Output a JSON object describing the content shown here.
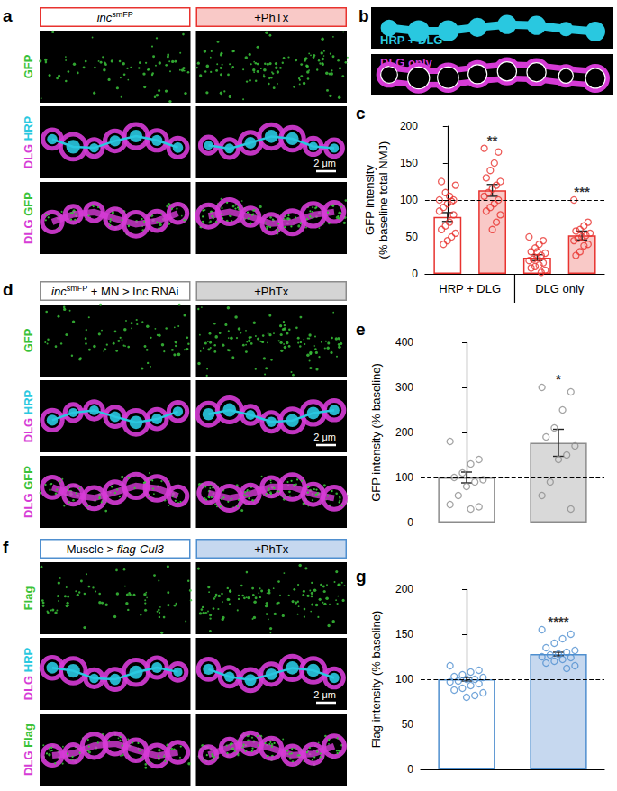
{
  "panels": [
    {
      "letter": "a",
      "headers": [
        [
          {
            "text": "inc",
            "italic": true
          },
          {
            "text": "smFP",
            "sup": true
          }
        ],
        [
          {
            "text": "+PhTx"
          }
        ]
      ],
      "theme": {
        "color": "#e8332f",
        "fill": "#f9c9c7"
      },
      "rows": [
        [
          {
            "text": "GFP",
            "color": "#39c23a"
          }
        ],
        [
          {
            "text": "DLG",
            "color": "#d63bd6"
          },
          {
            "text": " HRP",
            "color": "#29c8e0"
          }
        ],
        [
          {
            "text": "DLG",
            "color": "#d63bd6"
          },
          {
            "text": " GFP",
            "color": "#39c23a"
          }
        ]
      ],
      "scale_bar": "2 μm"
    },
    {
      "letter": "b",
      "rows": [
        {
          "text": "HRP + DLG",
          "color": "#29c8e0"
        },
        {
          "text": "DLG only",
          "color": "#d63bd6"
        }
      ]
    },
    {
      "letter": "d",
      "headers": [
        [
          {
            "text": "inc",
            "italic": true
          },
          {
            "text": "smFP",
            "sup": true
          },
          {
            "text": " + MN > Inc RNAi"
          }
        ],
        [
          {
            "text": "+PhTx"
          }
        ]
      ],
      "theme": {
        "color": "#8c8c8c",
        "fill": "#d4d4d4"
      },
      "rows": [
        [
          {
            "text": "GFP",
            "color": "#39c23a"
          }
        ],
        [
          {
            "text": "DLG",
            "color": "#d63bd6"
          },
          {
            "text": " HRP",
            "color": "#29c8e0"
          }
        ],
        [
          {
            "text": "DLG",
            "color": "#d63bd6"
          },
          {
            "text": " GFP",
            "color": "#39c23a"
          }
        ]
      ],
      "scale_bar": "2 μm"
    },
    {
      "letter": "f",
      "headers": [
        [
          {
            "text": "Muscle > "
          },
          {
            "text": "flag-Cul3",
            "italic": true
          }
        ],
        [
          {
            "text": "+PhTx"
          }
        ]
      ],
      "theme": {
        "color": "#4f8fcf",
        "fill": "#c6d8ef"
      },
      "rows": [
        [
          {
            "text": "Flag",
            "color": "#39c23a"
          }
        ],
        [
          {
            "text": "DLG",
            "color": "#d63bd6"
          },
          {
            "text": " HRP",
            "color": "#29c8e0"
          }
        ],
        [
          {
            "text": "DLG",
            "color": "#d63bd6"
          },
          {
            "text": " Flag",
            "color": "#39c23a"
          }
        ]
      ],
      "scale_bar": "2 μm"
    }
  ],
  "chart_letters": [
    "c",
    "e",
    "g"
  ],
  "chart_data": [
    {
      "type": "bar",
      "y_label": "GFP intensity\n(% baseline total NMJ)",
      "categories": [
        null,
        null,
        null,
        null
      ],
      "group_labels": [
        "HRP + DLG",
        "DLG only"
      ],
      "values": [
        77,
        113,
        22,
        52
      ],
      "errors": [
        6,
        8,
        4,
        6
      ],
      "points": [
        [
          100,
          100,
          105,
          110,
          125,
          120,
          98,
          95,
          90,
          85,
          80,
          70,
          65,
          60,
          55,
          50,
          45,
          40
        ],
        [
          170,
          165,
          150,
          140,
          130,
          125,
          120,
          115,
          110,
          105,
          100,
          95,
          90,
          85,
          80,
          70,
          60
        ],
        [
          50,
          45,
          40,
          35,
          30,
          28,
          25,
          22,
          20,
          18,
          15,
          12,
          10,
          8,
          5,
          2,
          30
        ],
        [
          100,
          70,
          65,
          60,
          58,
          55,
          52,
          50,
          48,
          45,
          40,
          38,
          30,
          25
        ]
      ],
      "annotations": [
        null,
        "**",
        null,
        "***"
      ],
      "colors": [
        "#ffffff",
        "#f9c9c7",
        "#ffffff",
        "#f9c9c7"
      ],
      "color": "#e8332f",
      "reference_line": 100,
      "ylim": [
        0,
        200
      ],
      "yticks": [
        0,
        50,
        100,
        150,
        200
      ],
      "grid": false
    },
    {
      "type": "bar",
      "y_label": "GFP intensity (% baseline)",
      "categories": [
        null,
        null
      ],
      "values": [
        100,
        177
      ],
      "errors": [
        12,
        30
      ],
      "points": [
        [
          180,
          140,
          130,
          110,
          100,
          95,
          90,
          80,
          60,
          40,
          35,
          30
        ],
        [
          300,
          290,
          250,
          210,
          190,
          170,
          150,
          140,
          90,
          60,
          30
        ]
      ],
      "annotations": [
        null,
        "*"
      ],
      "colors": [
        "#ffffff",
        "#d9d9d9"
      ],
      "color": "#8c8c8c",
      "reference_line": 100,
      "ylim": [
        0,
        400
      ],
      "yticks": [
        0,
        100,
        200,
        300,
        400
      ],
      "grid": false
    },
    {
      "type": "bar",
      "y_label": "Flag intensity (% baseline)",
      "categories": [
        null,
        null
      ],
      "values": [
        100,
        128
      ],
      "errors": [
        2,
        2
      ],
      "points": [
        [
          115,
          110,
          108,
          105,
          103,
          102,
          100,
          100,
          98,
          97,
          95,
          93,
          90,
          88,
          85,
          82,
          80
        ],
        [
          155,
          150,
          145,
          140,
          135,
          132,
          130,
          128,
          127,
          125,
          124,
          122,
          120,
          118,
          115,
          112
        ]
      ],
      "annotations": [
        null,
        "****"
      ],
      "colors": [
        "#ffffff",
        "#c6d8ef"
      ],
      "color": "#4f8fcf",
      "reference_line": 100,
      "ylim": [
        0,
        200
      ],
      "yticks": [
        0,
        50,
        100,
        150,
        200
      ],
      "grid": false
    }
  ]
}
